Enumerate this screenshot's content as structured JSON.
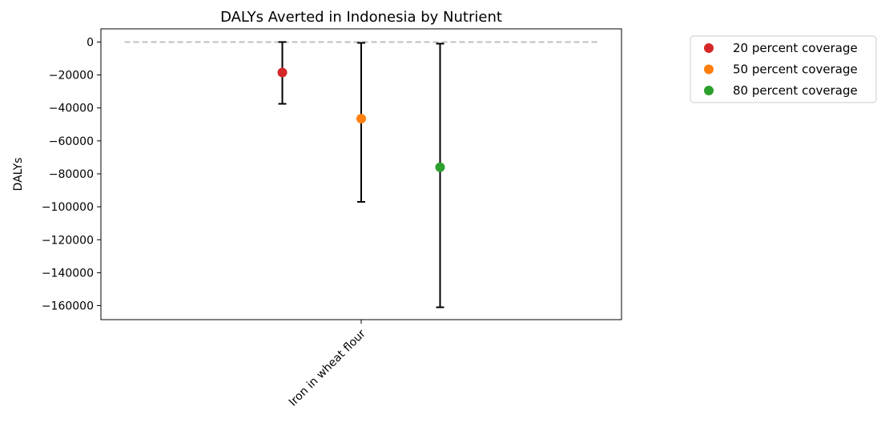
{
  "chart_data": {
    "type": "scatter",
    "title": "DALYs Averted in Indonesia by Nutrient",
    "xlabel": "",
    "ylabel": "DALYs",
    "categories": [
      "Iron in wheat flour"
    ],
    "ylim": [
      -168500,
      8000
    ],
    "xlim": [
      -1.65,
      1.65
    ],
    "yticks": [
      0,
      -20000,
      -40000,
      -60000,
      -80000,
      -100000,
      -120000,
      -140000,
      -160000
    ],
    "ytick_labels": [
      "0",
      "−20000",
      "−40000",
      "−60000",
      "−80000",
      "−100000",
      "−120000",
      "−140000",
      "−160000"
    ],
    "reference_line": {
      "y": 0,
      "x_range": [
        -1.5,
        1.5
      ],
      "color": "#bfbfbf",
      "style": "dashed"
    },
    "series": [
      {
        "name": "20 percent coverage",
        "color": "#d62728",
        "x": -0.5,
        "y": -18500,
        "error_low": -37500,
        "error_high": 0
      },
      {
        "name": "50 percent coverage",
        "color": "#ff7f0e",
        "x": 0.0,
        "y": -46500,
        "error_low": -97000,
        "error_high": -500
      },
      {
        "name": "80 percent coverage",
        "color": "#2ca02c",
        "x": 0.5,
        "y": -76000,
        "error_low": -161000,
        "error_high": -1000
      }
    ],
    "grid": false,
    "legend_position": "outside-top-right"
  }
}
